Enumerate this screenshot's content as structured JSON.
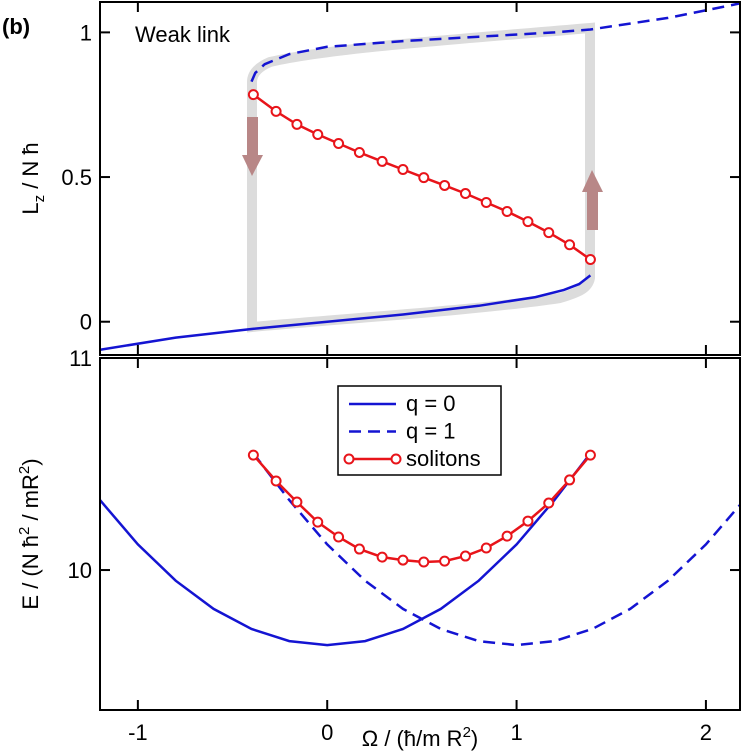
{
  "chart_data": [
    {
      "type": "line",
      "panel_label": "(b)",
      "annotation": "Weak link",
      "ylabel": [
        "L",
        "z",
        " / N ħ"
      ],
      "xlim": [
        -1.2,
        2.18
      ],
      "ylim": [
        -0.115,
        1.105
      ],
      "xticks": [
        -1,
        0,
        1,
        2
      ],
      "yticks": [
        0,
        0.5,
        1
      ],
      "series": [
        {
          "color": "#1414d2",
          "style": "solid",
          "x": [
            -1.2,
            -0.8,
            -0.4,
            0,
            0.4,
            0.8,
            1.1,
            1.25,
            1.33,
            1.39
          ],
          "values": [
            -0.097,
            -0.055,
            -0.025,
            0.0,
            0.025,
            0.055,
            0.085,
            0.11,
            0.13,
            0.16
          ]
        },
        {
          "color": "#1414d2",
          "style": "dashed",
          "x": [
            -0.4,
            -0.38,
            -0.33,
            -0.2,
            0,
            0.4,
            0.8,
            1.2,
            1.39,
            1.8,
            2.18
          ],
          "values": [
            0.83,
            0.86,
            0.89,
            0.925,
            0.95,
            0.97,
            0.985,
            1.0,
            1.01,
            1.05,
            1.1
          ]
        },
        {
          "color": "#e8141a",
          "style": "solid",
          "marker": "circle",
          "x": [
            -0.39,
            -0.27,
            -0.16,
            -0.05,
            0.06,
            0.17,
            0.29,
            0.4,
            0.51,
            0.62,
            0.73,
            0.84,
            0.95,
            1.06,
            1.17,
            1.28,
            1.39
          ],
          "values": [
            0.785,
            0.727,
            0.682,
            0.647,
            0.616,
            0.585,
            0.554,
            0.526,
            0.498,
            0.471,
            0.443,
            0.412,
            0.381,
            0.346,
            0.308,
            0.266,
            0.215
          ]
        }
      ]
    },
    {
      "type": "line",
      "ylabel": [
        "E / (N ħ",
        "2",
        " / mR",
        "2",
        ")"
      ],
      "xlabel": [
        "Ω / (ħ/m R",
        "2",
        ")"
      ],
      "xlim": [
        -1.2,
        2.18
      ],
      "ylim": [
        9.34,
        11
      ],
      "xticks": [
        -1,
        0,
        1,
        2
      ],
      "yticks": [
        10,
        11
      ],
      "legend": "top-center",
      "series": [
        {
          "name": "q = 0",
          "color": "#1414d2",
          "style": "solid",
          "x": [
            -1.2,
            -1.0,
            -0.8,
            -0.6,
            -0.4,
            -0.2,
            0,
            0.2,
            0.4,
            0.6,
            0.8,
            1.0,
            1.2,
            1.39
          ],
          "values": [
            10.33,
            10.121,
            9.95,
            9.817,
            9.722,
            9.665,
            9.646,
            9.665,
            9.722,
            9.817,
            9.95,
            10.121,
            10.33,
            10.55
          ]
        },
        {
          "name": "q = 1",
          "color": "#1414d2",
          "style": "dashed",
          "x": [
            -0.39,
            -0.2,
            0,
            0.2,
            0.4,
            0.6,
            0.8,
            1.0,
            1.2,
            1.4,
            1.6,
            1.8,
            2.0,
            2.18
          ],
          "values": [
            10.55,
            10.33,
            10.121,
            9.95,
            9.817,
            9.722,
            9.665,
            9.646,
            9.665,
            9.722,
            9.817,
            9.95,
            10.121,
            10.307
          ]
        },
        {
          "name": "solitons",
          "color": "#e8141a",
          "style": "solid",
          "marker": "circle",
          "x": [
            -0.39,
            -0.27,
            -0.16,
            -0.05,
            0.06,
            0.17,
            0.29,
            0.4,
            0.51,
            0.62,
            0.73,
            0.84,
            0.95,
            1.06,
            1.17,
            1.28,
            1.39
          ],
          "values": [
            10.542,
            10.42,
            10.321,
            10.226,
            10.156,
            10.099,
            10.061,
            10.047,
            10.038,
            10.042,
            10.066,
            10.104,
            10.16,
            10.231,
            10.316,
            10.425,
            10.542
          ]
        }
      ]
    }
  ]
}
